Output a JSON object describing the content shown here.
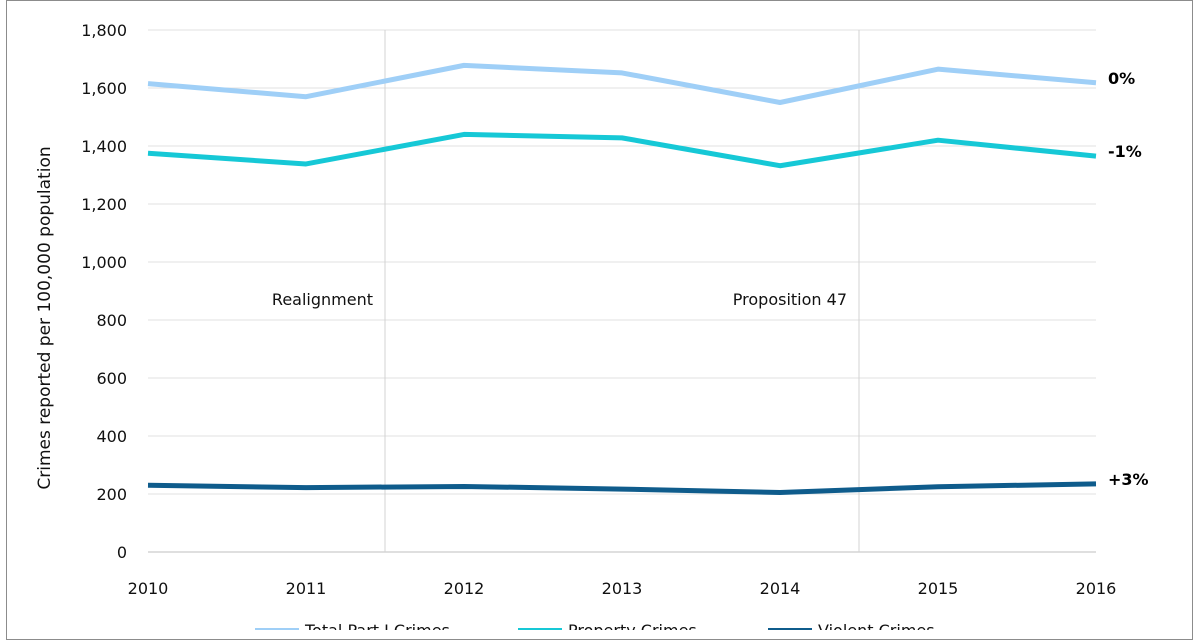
{
  "chart_data": {
    "type": "line",
    "x": [
      "2010",
      "2011",
      "2012",
      "2013",
      "2014",
      "2015",
      "2016"
    ],
    "ylabel": "Crimes reported per 100,000 population",
    "ylim": [
      0,
      1800
    ],
    "yticks": [
      "0",
      "200",
      "400",
      "600",
      "800",
      "1,000",
      "1,200",
      "1,400",
      "1,600",
      "1,800"
    ],
    "grid": "horizontal",
    "series": [
      {
        "name": "Total Part I Crimes",
        "color": "#9fcff7",
        "values": [
          1615,
          1570,
          1678,
          1652,
          1550,
          1665,
          1618
        ],
        "end_label": "0%"
      },
      {
        "name": "Property Crimes",
        "color": "#16c8d6",
        "values": [
          1375,
          1338,
          1440,
          1428,
          1332,
          1420,
          1365
        ],
        "end_label": "-1%"
      },
      {
        "name": "Violent Crimes",
        "color": "#0f5c8c",
        "values": [
          230,
          222,
          226,
          217,
          205,
          225,
          235
        ],
        "end_label": "+3%"
      }
    ],
    "annotations": [
      {
        "label": "Realignment",
        "between": [
          "2011",
          "2012"
        ]
      },
      {
        "label": "Proposition 47",
        "between": [
          "2014",
          "2015"
        ]
      }
    ],
    "legend": "bottom"
  }
}
